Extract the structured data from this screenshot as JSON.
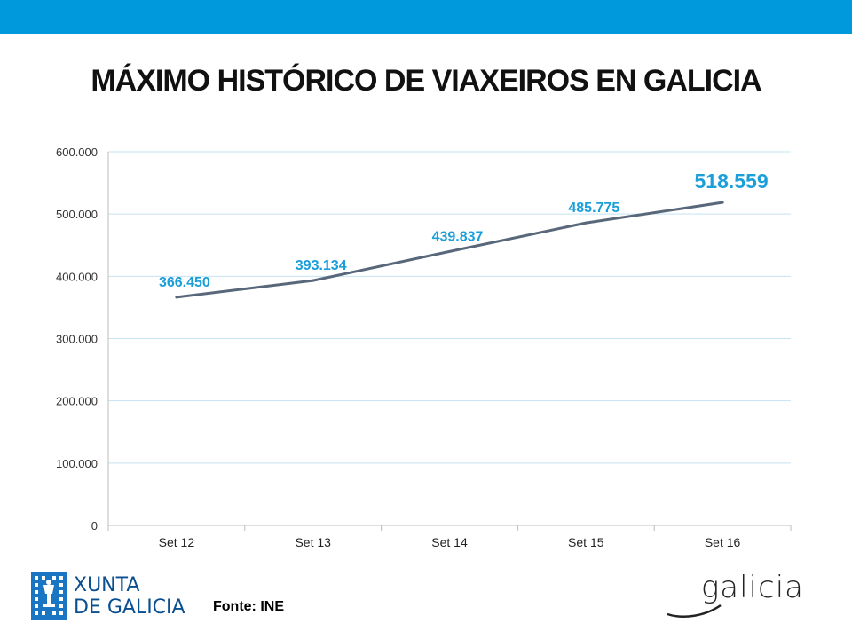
{
  "header": {
    "title": "MÁXIMO HISTÓRICO DE VIAXEIROS EN GALICIA"
  },
  "footer": {
    "source": "Fonte: INE",
    "xunta_logo_lines": [
      "XUNTA",
      "DE GALICIA"
    ],
    "galicia_logo_text": "galicia"
  },
  "colors": {
    "top_bar": "#0099dc",
    "line": "#59677a",
    "data_label": "#1a9fd9",
    "grid": "#c5e3f2",
    "xunta_blue": "#0a4f8f"
  },
  "chart_data": {
    "type": "line",
    "title": "MÁXIMO HISTÓRICO DE VIAXEIROS EN GALICIA",
    "xlabel": "",
    "ylabel": "",
    "categories": [
      "Set 12",
      "Set 13",
      "Set 14",
      "Set 15",
      "Set 16"
    ],
    "series": [
      {
        "values": [
          366450,
          393134,
          439837,
          485775,
          518559
        ]
      }
    ],
    "data_labels": [
      "366.450",
      "393.134",
      "439.837",
      "485.775",
      "518.559"
    ],
    "ylim": [
      0,
      600000
    ],
    "yticks": [
      0,
      100000,
      200000,
      300000,
      400000,
      500000,
      600000
    ],
    "ytick_labels": [
      "0",
      "100.000",
      "200.000",
      "300.000",
      "400.000",
      "500.000",
      "600.000"
    ],
    "grid": true,
    "legend": "none"
  }
}
